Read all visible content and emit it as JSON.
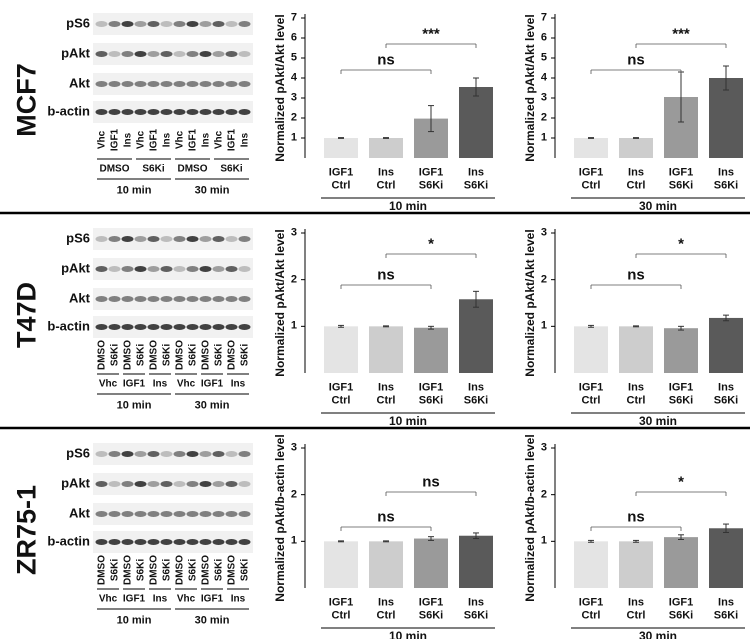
{
  "panels": [
    {
      "cell_line": "MCF7",
      "bands": [
        "pS6",
        "pAkt",
        "Akt",
        "b-actin"
      ],
      "lanes": [
        "Vhc",
        "IGF1",
        "Ins",
        "Vhc",
        "IGF1",
        "Ins",
        "Vhc",
        "IGF1",
        "Ins",
        "Vhc",
        "IGF1",
        "Ins"
      ],
      "groups": [
        "DMSO",
        "S6Ki",
        "DMSO",
        "S6Ki"
      ],
      "times": [
        "10 min",
        "30 min"
      ]
    },
    {
      "cell_line": "T47D",
      "bands": [
        "pS6",
        "pAkt",
        "Akt",
        "b-actin"
      ],
      "lanes": [
        "DMSO",
        "S6Ki",
        "DMSO",
        "S6Ki",
        "DMSO",
        "S6Ki",
        "DMSO",
        "S6Ki",
        "DMSO",
        "S6Ki",
        "DMSO",
        "S6Ki"
      ],
      "groups": [
        "Vhc",
        "IGF1",
        "Ins",
        "Vhc",
        "IGF1",
        "Ins"
      ],
      "times": [
        "10 min",
        "30 min"
      ]
    },
    {
      "cell_line": "ZR75-1",
      "bands": [
        "pS6",
        "pAkt",
        "Akt",
        "b-actin"
      ],
      "lanes": [
        "DMSO",
        "S6Ki",
        "DMSO",
        "S6Ki",
        "DMSO",
        "S6Ki",
        "DMSO",
        "S6Ki",
        "DMSO",
        "S6Ki",
        "DMSO",
        "S6Ki"
      ],
      "groups": [
        "Vhc",
        "IGF1",
        "Ins",
        "Vhc",
        "IGF1",
        "Ins"
      ],
      "times": [
        "10 min",
        "30 min"
      ]
    }
  ],
  "chart_data": [
    {
      "type": "bar",
      "ylabel": "Normalized pAkt/Akt level",
      "categories": [
        "IGF1\nCtrl",
        "Ins\nCtrl",
        "IGF1\nS6Ki",
        "Ins\nS6Ki"
      ],
      "values": [
        1,
        1,
        1.97,
        3.55
      ],
      "errors": [
        0.02,
        0.02,
        0.65,
        0.45
      ],
      "colors": [
        "#e4e4e4",
        "#cdcdcd",
        "#9a9a9a",
        "#5a5a5a"
      ],
      "ylim": [
        0,
        7
      ],
      "yticks": [
        1,
        2,
        3,
        4,
        5,
        6,
        7
      ],
      "group_label": "10 min",
      "annotations": [
        "ns",
        "***"
      ]
    },
    {
      "type": "bar",
      "ylabel": "Normalized pAkt/Akt level",
      "categories": [
        "IGF1\nCtrl",
        "Ins\nCtrl",
        "IGF1\nS6Ki",
        "Ins\nS6Ki"
      ],
      "values": [
        1,
        1,
        3.05,
        4.0
      ],
      "errors": [
        0.02,
        0.02,
        1.25,
        0.6
      ],
      "colors": [
        "#e4e4e4",
        "#cdcdcd",
        "#9a9a9a",
        "#5a5a5a"
      ],
      "ylim": [
        0,
        7
      ],
      "yticks": [
        1,
        2,
        3,
        4,
        5,
        6,
        7
      ],
      "group_label": "30 min",
      "annotations": [
        "ns",
        "***"
      ]
    },
    {
      "type": "bar",
      "ylabel": "Normalized pAkt/Akt level",
      "categories": [
        "IGF1\nCtrl",
        "Ins\nCtrl",
        "IGF1\nS6Ki",
        "Ins\nS6Ki"
      ],
      "values": [
        1,
        1,
        0.97,
        1.58
      ],
      "errors": [
        0.02,
        0.01,
        0.03,
        0.17
      ],
      "colors": [
        "#e4e4e4",
        "#cdcdcd",
        "#9a9a9a",
        "#5a5a5a"
      ],
      "ylim": [
        0,
        3
      ],
      "yticks": [
        1,
        2,
        3
      ],
      "group_label": "10 min",
      "annotations": [
        "ns",
        "*"
      ]
    },
    {
      "type": "bar",
      "ylabel": "Normalized pAkt/Akt level",
      "categories": [
        "IGF1\nCtrl",
        "Ins\nCtrl",
        "IGF1\nS6Ki",
        "Ins\nS6Ki"
      ],
      "values": [
        1,
        1,
        0.96,
        1.18
      ],
      "errors": [
        0.02,
        0.01,
        0.04,
        0.06
      ],
      "colors": [
        "#e4e4e4",
        "#cdcdcd",
        "#9a9a9a",
        "#5a5a5a"
      ],
      "ylim": [
        0,
        3
      ],
      "yticks": [
        1,
        2,
        3
      ],
      "group_label": "30 min",
      "annotations": [
        "ns",
        "*"
      ]
    },
    {
      "type": "bar",
      "ylabel": "Normalized pAkt/b-actin level",
      "categories": [
        "IGF1\nCtrl",
        "Ins\nCtrl",
        "IGF1\nS6Ki",
        "Ins\nS6Ki"
      ],
      "values": [
        1,
        1,
        1.06,
        1.12
      ],
      "errors": [
        0.01,
        0.01,
        0.04,
        0.06
      ],
      "colors": [
        "#e4e4e4",
        "#cdcdcd",
        "#9a9a9a",
        "#5a5a5a"
      ],
      "ylim": [
        0,
        3
      ],
      "yticks": [
        1,
        2,
        3
      ],
      "group_label": "10 min",
      "annotations": [
        "ns",
        "ns"
      ]
    },
    {
      "type": "bar",
      "ylabel": "Normalized pAkt/b-actin level",
      "categories": [
        "IGF1\nCtrl",
        "Ins\nCtrl",
        "IGF1\nS6Ki",
        "Ins\nS6Ki"
      ],
      "values": [
        1,
        1,
        1.09,
        1.28
      ],
      "errors": [
        0.02,
        0.02,
        0.05,
        0.09
      ],
      "colors": [
        "#e4e4e4",
        "#cdcdcd",
        "#9a9a9a",
        "#5a5a5a"
      ],
      "ylim": [
        0,
        3
      ],
      "yticks": [
        1,
        2,
        3
      ],
      "group_label": "30 min",
      "annotations": [
        "ns",
        "*"
      ]
    }
  ]
}
